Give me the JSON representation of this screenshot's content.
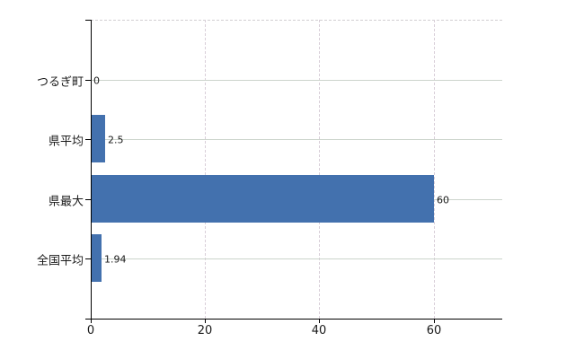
{
  "chart_data": {
    "type": "bar",
    "orientation": "horizontal",
    "title": "",
    "xlabel": "",
    "ylabel": "",
    "categories": [
      "つるぎ町",
      "県平均",
      "県最大",
      "全国平均"
    ],
    "values": [
      0,
      2.5,
      60,
      1.94
    ],
    "value_labels": [
      "0",
      "2.5",
      "60",
      "1.94"
    ],
    "xticks": [
      0,
      20,
      40,
      60
    ],
    "xtick_labels": [
      "0",
      "20",
      "40",
      "60"
    ],
    "xlim": [
      0,
      72
    ],
    "grid": true,
    "legend": false,
    "colors": {
      "bar": "#4371ae",
      "h_gridline": "#ccd4cc",
      "v_gridline": "#d8ced8",
      "top_border": "#d2ced2",
      "axis": "#000000",
      "text": "#1a1a1a",
      "background": "#ffffff"
    }
  }
}
